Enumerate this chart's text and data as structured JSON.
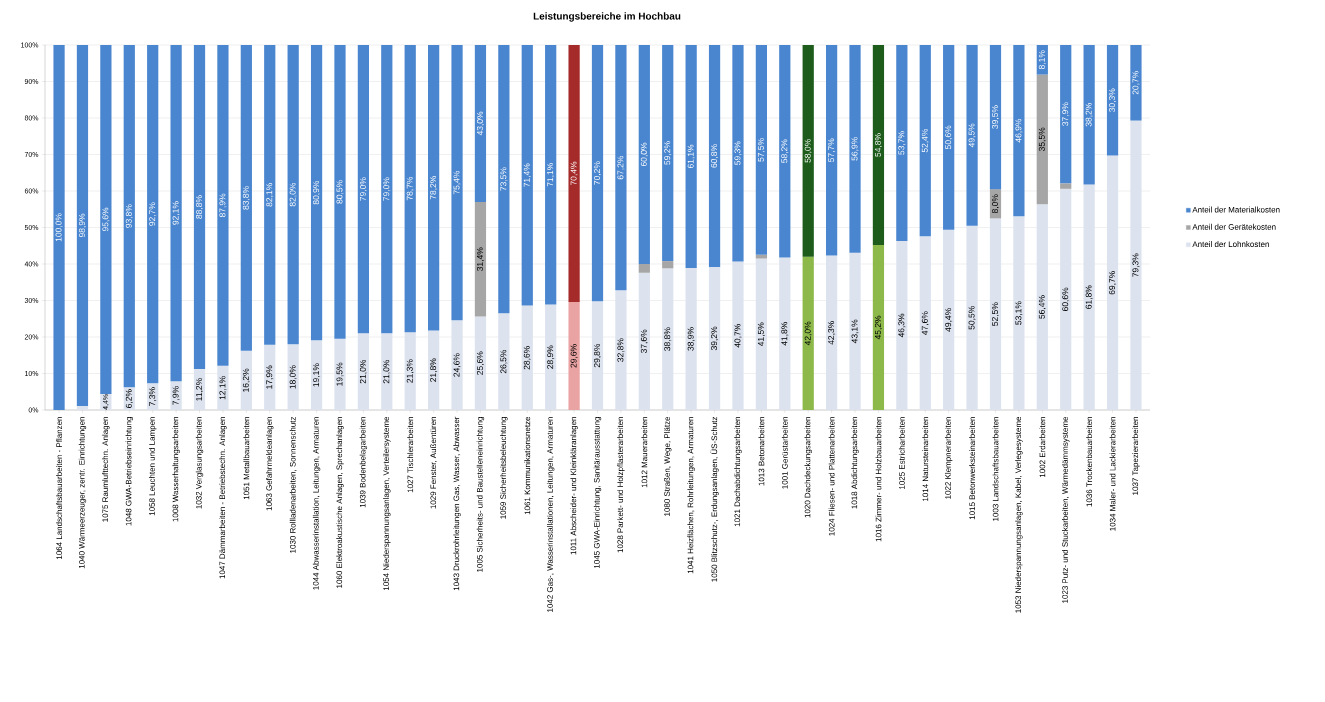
{
  "chart_data": {
    "type": "bar",
    "stacked": true,
    "title": "Leistungsbereiche im Hochbau",
    "categories": [
      "1064 Landschaftsbauarbeiten - Pflanzen",
      "1040 Wärmeerzeuger, zentr. Einrichtungen",
      "1075 Raumlufttechn. Anlagen",
      "1048 GWA-Betriebseinrichtung",
      "1058 Leuchten und Lampen",
      "1008 Wasserhaltungsarbeiten",
      "1032 Verglasungsarbeiten",
      "1047 Dämmarbeiten - Betriebstechn. Anlagen",
      "1051 Metallbauarbeiten",
      "1063 Gefahrmeldeanlagen",
      "1030 Rollladenarbeiten, Sonnenschutz",
      "1044 Abwasserinstallation, Leitungen, Armaturen",
      "1060 Elektroakustische Anlagen, Sprechanlagen",
      "1039 Bodenbelagarbeiten",
      "1054 Niederspannungsanlagen, Verteilersysteme",
      "1027 Tischlerarbeiten",
      "1029 Fenster, Außentüren",
      "1043 Druckrohrleitungen Gas, Wasser, Abwasser",
      "1005 Sicherheits- und Baustelleneinrichtung",
      "1059 Sicherheitsbeleuchtung",
      "1061 Kommunikationsnetze",
      "1042 Gas-, Wasserinstallationen, Leitungen, Armaturen",
      "1011 Abscheider- und Kleinkläranlagen",
      "1045 GWA-Einrichtung, Sanitärausstattung",
      "1028 Parkett- und Holzpflasterarbeiten",
      "1012 Mauerarbeiten",
      "1080 Straßen, Wege, Plätze",
      "1041 Heizflächen, Rohrleitungen, Armaturen",
      "1050 Blitzschutz-, Erdungsanlagen, ÜS-Schutz",
      "1021 Dachabdichtungsarbeiten",
      "1013 Betonarbeiten",
      "1001 Gerüstarbeiten",
      "1020 Dachdeckungsarbeiten",
      "1024 Fliesen- und Plattenarbeiten",
      "1018 Abdichtungsarbeiten",
      "1016 Zimmer- und Holzbauarbeiten",
      "1025 Estricharbeiten",
      "1014 Natursteinarbeiten",
      "1022 Klempnerarbeiten",
      "1015 Betonwerksteinarbeiten",
      "1003 Landschaftsbauarbeiten",
      "1053 Niederspannungsanlagen, Kabel, Verlegesysteme",
      "1002 Erdarbeiten",
      "1023 Putz- und Stuckarbeiten, Wärmedämmsysteme",
      "1036 Trockenbauarbeiten",
      "1034 Maler- und Lackierarbeiten",
      "1037 Tapezierarbeiten"
    ],
    "series": [
      {
        "name": "Anteil der Lohnkosten",
        "color": "#dce3ef",
        "colors": [
          "#dce3ef",
          "#dce3ef",
          "#dce3ef",
          "#dce3ef",
          "#dce3ef",
          "#dce3ef",
          "#dce3ef",
          "#dce3ef",
          "#dce3ef",
          "#dce3ef",
          "#dce3ef",
          "#dce3ef",
          "#dce3ef",
          "#dce3ef",
          "#dce3ef",
          "#dce3ef",
          "#dce3ef",
          "#dce3ef",
          "#dce3ef",
          "#dce3ef",
          "#dce3ef",
          "#dce3ef",
          "#eaa3a3",
          "#dce3ef",
          "#dce3ef",
          "#dce3ef",
          "#dce3ef",
          "#dce3ef",
          "#dce3ef",
          "#dce3ef",
          "#dce3ef",
          "#dce3ef",
          "#8db84a",
          "#dce3ef",
          "#dce3ef",
          "#8db84a",
          "#dce3ef",
          "#dce3ef",
          "#dce3ef",
          "#dce3ef",
          "#dce3ef",
          "#dce3ef",
          "#dce3ef",
          "#dce3ef",
          "#dce3ef",
          "#dce3ef",
          "#dce3ef"
        ],
        "values": [
          0.0,
          1.1,
          4.4,
          6.2,
          7.3,
          7.9,
          11.2,
          12.1,
          16.2,
          17.9,
          18.0,
          19.1,
          19.5,
          21.0,
          21.0,
          21.3,
          21.8,
          24.6,
          25.6,
          26.5,
          28.6,
          28.9,
          29.6,
          29.8,
          32.8,
          37.6,
          38.8,
          38.9,
          39.2,
          40.7,
          41.5,
          41.8,
          42.0,
          42.3,
          43.1,
          45.2,
          46.3,
          47.6,
          49.4,
          50.5,
          52.5,
          53.1,
          56.4,
          60.6,
          61.8,
          69.7,
          79.3
        ],
        "value_labels": [
          null,
          null,
          "4,4%",
          "6,2%",
          "7,3%",
          "7,9%",
          "11,2%",
          "12,1%",
          "16,2%",
          "17,9%",
          "18,0%",
          "19,1%",
          "19,5%",
          "21,0%",
          "21,0%",
          "21,3%",
          "21,8%",
          "24,6%",
          "25,6%",
          "26,5%",
          "28,6%",
          "28,9%",
          "29,6%",
          "29,8%",
          "32,8%",
          "37,6%",
          "38,8%",
          "38,9%",
          "39,2%",
          "40,7%",
          "41,5%",
          "41,8%",
          "42,0%",
          "42,3%",
          "43,1%",
          "45,2%",
          "46,3%",
          "47,6%",
          "49,4%",
          "50,5%",
          "52,5%",
          "53,1%",
          "56,4%",
          "60,6%",
          "61,8%",
          "69,7%",
          "79,3%"
        ]
      },
      {
        "name": "Anteil der Gerätekosten",
        "color": "#a6a6a6",
        "values": [
          null,
          null,
          null,
          null,
          null,
          null,
          null,
          null,
          null,
          null,
          null,
          null,
          null,
          null,
          null,
          null,
          null,
          null,
          31.4,
          null,
          null,
          null,
          null,
          null,
          null,
          2.4,
          2.0,
          null,
          null,
          null,
          1.0,
          null,
          null,
          null,
          null,
          null,
          null,
          null,
          null,
          null,
          8.0,
          null,
          35.5,
          1.5,
          null,
          null,
          null
        ],
        "value_labels": [
          null,
          null,
          null,
          null,
          null,
          null,
          null,
          null,
          null,
          null,
          null,
          null,
          null,
          null,
          null,
          null,
          null,
          null,
          "31,4%",
          null,
          null,
          null,
          null,
          null,
          null,
          null,
          null,
          null,
          null,
          null,
          null,
          null,
          null,
          null,
          null,
          null,
          null,
          null,
          null,
          null,
          "8,0%",
          null,
          "35,5%",
          null,
          null,
          null,
          null
        ]
      },
      {
        "name": "Anteil der Materialkosten",
        "color": "#4a86cf",
        "colors": [
          "#4a86cf",
          "#4a86cf",
          "#4a86cf",
          "#4a86cf",
          "#4a86cf",
          "#4a86cf",
          "#4a86cf",
          "#4a86cf",
          "#4a86cf",
          "#4a86cf",
          "#4a86cf",
          "#4a86cf",
          "#4a86cf",
          "#4a86cf",
          "#4a86cf",
          "#4a86cf",
          "#4a86cf",
          "#4a86cf",
          "#4a86cf",
          "#4a86cf",
          "#4a86cf",
          "#4a86cf",
          "#a52a2a",
          "#4a86cf",
          "#4a86cf",
          "#4a86cf",
          "#4a86cf",
          "#4a86cf",
          "#4a86cf",
          "#4a86cf",
          "#4a86cf",
          "#4a86cf",
          "#1d5c1a",
          "#4a86cf",
          "#4a86cf",
          "#1d5c1a",
          "#4a86cf",
          "#4a86cf",
          "#4a86cf",
          "#4a86cf",
          "#4a86cf",
          "#4a86cf",
          "#4a86cf",
          "#4a86cf",
          "#4a86cf",
          "#4a86cf",
          "#4a86cf"
        ],
        "values": [
          100.0,
          98.9,
          95.6,
          93.8,
          92.7,
          92.1,
          88.8,
          87.9,
          83.8,
          82.1,
          82.0,
          80.9,
          80.5,
          79.0,
          79.0,
          78.7,
          78.2,
          75.4,
          43.0,
          73.5,
          71.4,
          71.1,
          70.4,
          70.2,
          67.2,
          60.0,
          59.2,
          61.1,
          60.8,
          59.3,
          57.5,
          58.2,
          58.0,
          57.7,
          56.9,
          54.8,
          53.7,
          52.4,
          50.6,
          49.5,
          39.5,
          46.9,
          8.1,
          37.9,
          38.2,
          30.3,
          20.7
        ],
        "value_labels": [
          "100,0%",
          "98,9%",
          "95,6%",
          "93,8%",
          "92,7%",
          "92,1%",
          "88,8%",
          "87,9%",
          "83,8%",
          "82,1%",
          "82,0%",
          "80,9%",
          "80,5%",
          "79,0%",
          "79,0%",
          "78,7%",
          "78,2%",
          "75,4%",
          "43,0%",
          "73,5%",
          "71,4%",
          "71,1%",
          "70,4%",
          "70,2%",
          "67,2%",
          "60,0%",
          "59,2%",
          "61,1%",
          "60,8%",
          "59,3%",
          "57,5%",
          "58,2%",
          "58,0%",
          "57,7%",
          "56,9%",
          "54,8%",
          "53,7%",
          "52,4%",
          "50,6%",
          "49,5%",
          "39,5%",
          "46,9%",
          "8,1%",
          "37,9%",
          "38,2%",
          "30,3%",
          "20,7%"
        ]
      }
    ],
    "ylim": [
      0,
      100
    ],
    "yticks": [
      {
        "value": 0,
        "label": "0%"
      },
      {
        "value": 10,
        "label": "10%"
      },
      {
        "value": 20,
        "label": "20%"
      },
      {
        "value": 30,
        "label": "30%"
      },
      {
        "value": 40,
        "label": "40%"
      },
      {
        "value": 50,
        "label": "50%"
      },
      {
        "value": 60,
        "label": "60%"
      },
      {
        "value": 70,
        "label": "70%"
      },
      {
        "value": 80,
        "label": "80%"
      },
      {
        "value": 90,
        "label": "90%"
      },
      {
        "value": 100,
        "label": "100%"
      }
    ],
    "grid": "y",
    "legend": "right"
  }
}
